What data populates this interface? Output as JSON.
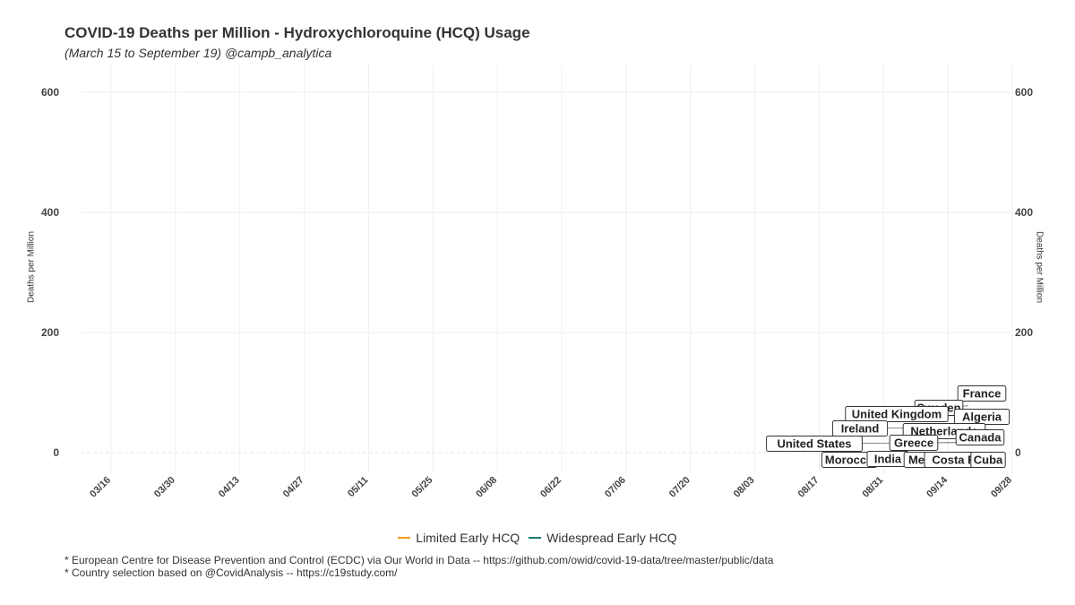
{
  "chart_data": {
    "type": "line",
    "title": "COVID-19 Deaths per Million - Hydroxychloroquine (HCQ) Usage",
    "subtitle": "(March 15 to September 19) @campb_analytica",
    "ylabel_left": "Deaths per Million",
    "ylabel_right": "Deaths per Million",
    "ylim": [
      0,
      600
    ],
    "yticks": [
      0,
      200,
      400,
      600
    ],
    "x_tick_labels": [
      "03/16",
      "03/30",
      "04/13",
      "04/27",
      "05/11",
      "05/25",
      "06/08",
      "06/22",
      "07/06",
      "07/20",
      "08/03",
      "08/17",
      "08/31",
      "09/14",
      "09/28"
    ],
    "grid": true,
    "legend_position": "bottom",
    "legend": [
      {
        "label": "Limited Early HCQ",
        "color": "#f39c12"
      },
      {
        "label": "Widespread Early HCQ",
        "color": "#1a7a70"
      }
    ],
    "country_labels": [
      {
        "name": "France",
        "value": 99
      },
      {
        "name": "Sweden",
        "value": 78
      },
      {
        "name": "United Kingdom",
        "value": 66
      },
      {
        "name": "Algeria",
        "value": 61
      },
      {
        "name": "Ireland",
        "value": 42
      },
      {
        "name": "Netherlands",
        "value": 37
      },
      {
        "name": "Canada",
        "value": 26
      },
      {
        "name": "United States",
        "value": 17
      },
      {
        "name": "Greece",
        "value": 17
      },
      {
        "name": "Morocco",
        "value": -10
      },
      {
        "name": "India",
        "value": -9
      },
      {
        "name": "Mexico",
        "value": -10
      },
      {
        "name": "Costa Rica",
        "value": -10
      },
      {
        "name": "Cuba",
        "value": -10
      }
    ]
  },
  "captions": [
    "* European Centre for Disease Prevention and Control (ECDC) via Our World in Data -- https://github.com/owid/covid-19-data/tree/master/public/data",
    "* Country selection based on @CovidAnalysis -- https://c19study.com/"
  ]
}
